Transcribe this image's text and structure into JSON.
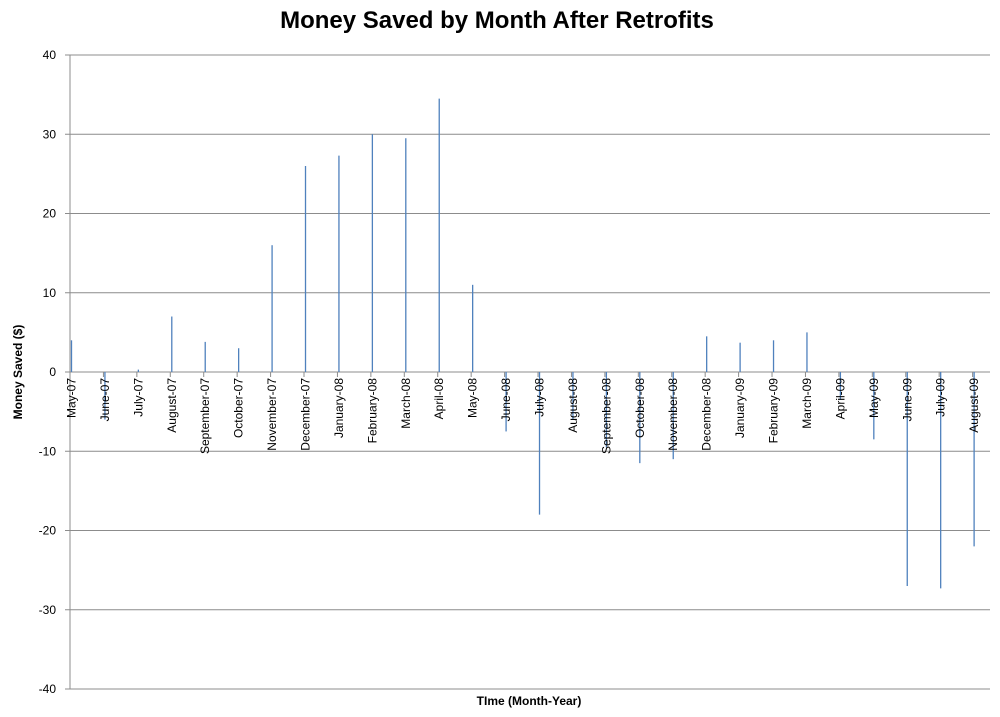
{
  "chart_data": {
    "type": "bar",
    "title": "Money Saved by Month After Retrofits",
    "xlabel": "TIme (Month-Year)",
    "ylabel": "Money Saved ($)",
    "ylim": [
      -40,
      40
    ],
    "yticks": [
      40,
      30,
      20,
      10,
      0,
      -10,
      -20,
      -30,
      -40
    ],
    "grid": true,
    "legend": "none",
    "bar_color": "#4f81bd",
    "categories": [
      "May-07",
      "June-07",
      "July-07",
      "August-07",
      "September-07",
      "October-07",
      "November-07",
      "December-07",
      "January-08",
      "February-08",
      "March-08",
      "April-08",
      "May-08",
      "June-08",
      "July-08",
      "August-08",
      "September-08",
      "October-08",
      "November-08",
      "December-08",
      "January-09",
      "February-09",
      "March-09",
      "April-09",
      "May-09",
      "June-09",
      "July-09",
      "August-09"
    ],
    "series": [
      {
        "values": [
          4,
          -6,
          0.3,
          7,
          3.8,
          3,
          16,
          26,
          27.3,
          30,
          29.5,
          34.5,
          11,
          -7.5,
          -18,
          -6,
          -9.5,
          -11.5,
          -11,
          4.5,
          3.7,
          4,
          5,
          -3.5,
          -8.5,
          -27,
          -27.3,
          -22
        ]
      }
    ]
  }
}
